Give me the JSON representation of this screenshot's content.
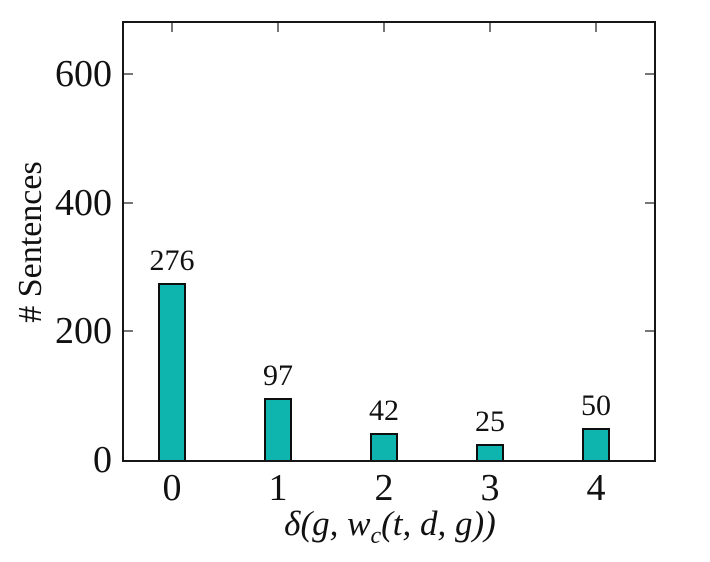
{
  "figure": {
    "background": "#ffffff",
    "frame_color": "#161616",
    "tick_color": "#767676",
    "text_color": "#111111"
  },
  "chart_data": {
    "type": "bar",
    "categories": [
      "0",
      "1",
      "2",
      "3",
      "4"
    ],
    "values": [
      276,
      97,
      42,
      25,
      50
    ],
    "bar_value_labels": [
      "276",
      "97",
      "42",
      "25",
      "50"
    ],
    "title": "",
    "xlabel": "δ(g, wc(t, d, g))",
    "xlabel_parts": {
      "prefix": "δ(g, w",
      "sub": "c",
      "suffix": "(t, d, g))"
    },
    "ylabel": "# Sentences",
    "ylim": [
      0,
      680
    ],
    "yticks": [
      0,
      200,
      400,
      600
    ],
    "ytick_labels": [
      "0",
      "200",
      "400",
      "600"
    ],
    "bar_color": "#0eb4ae",
    "bar_border_color": "#0e0e0e",
    "grid": false,
    "legend_position": "none",
    "frame": "box with inward ticks on all sides"
  }
}
